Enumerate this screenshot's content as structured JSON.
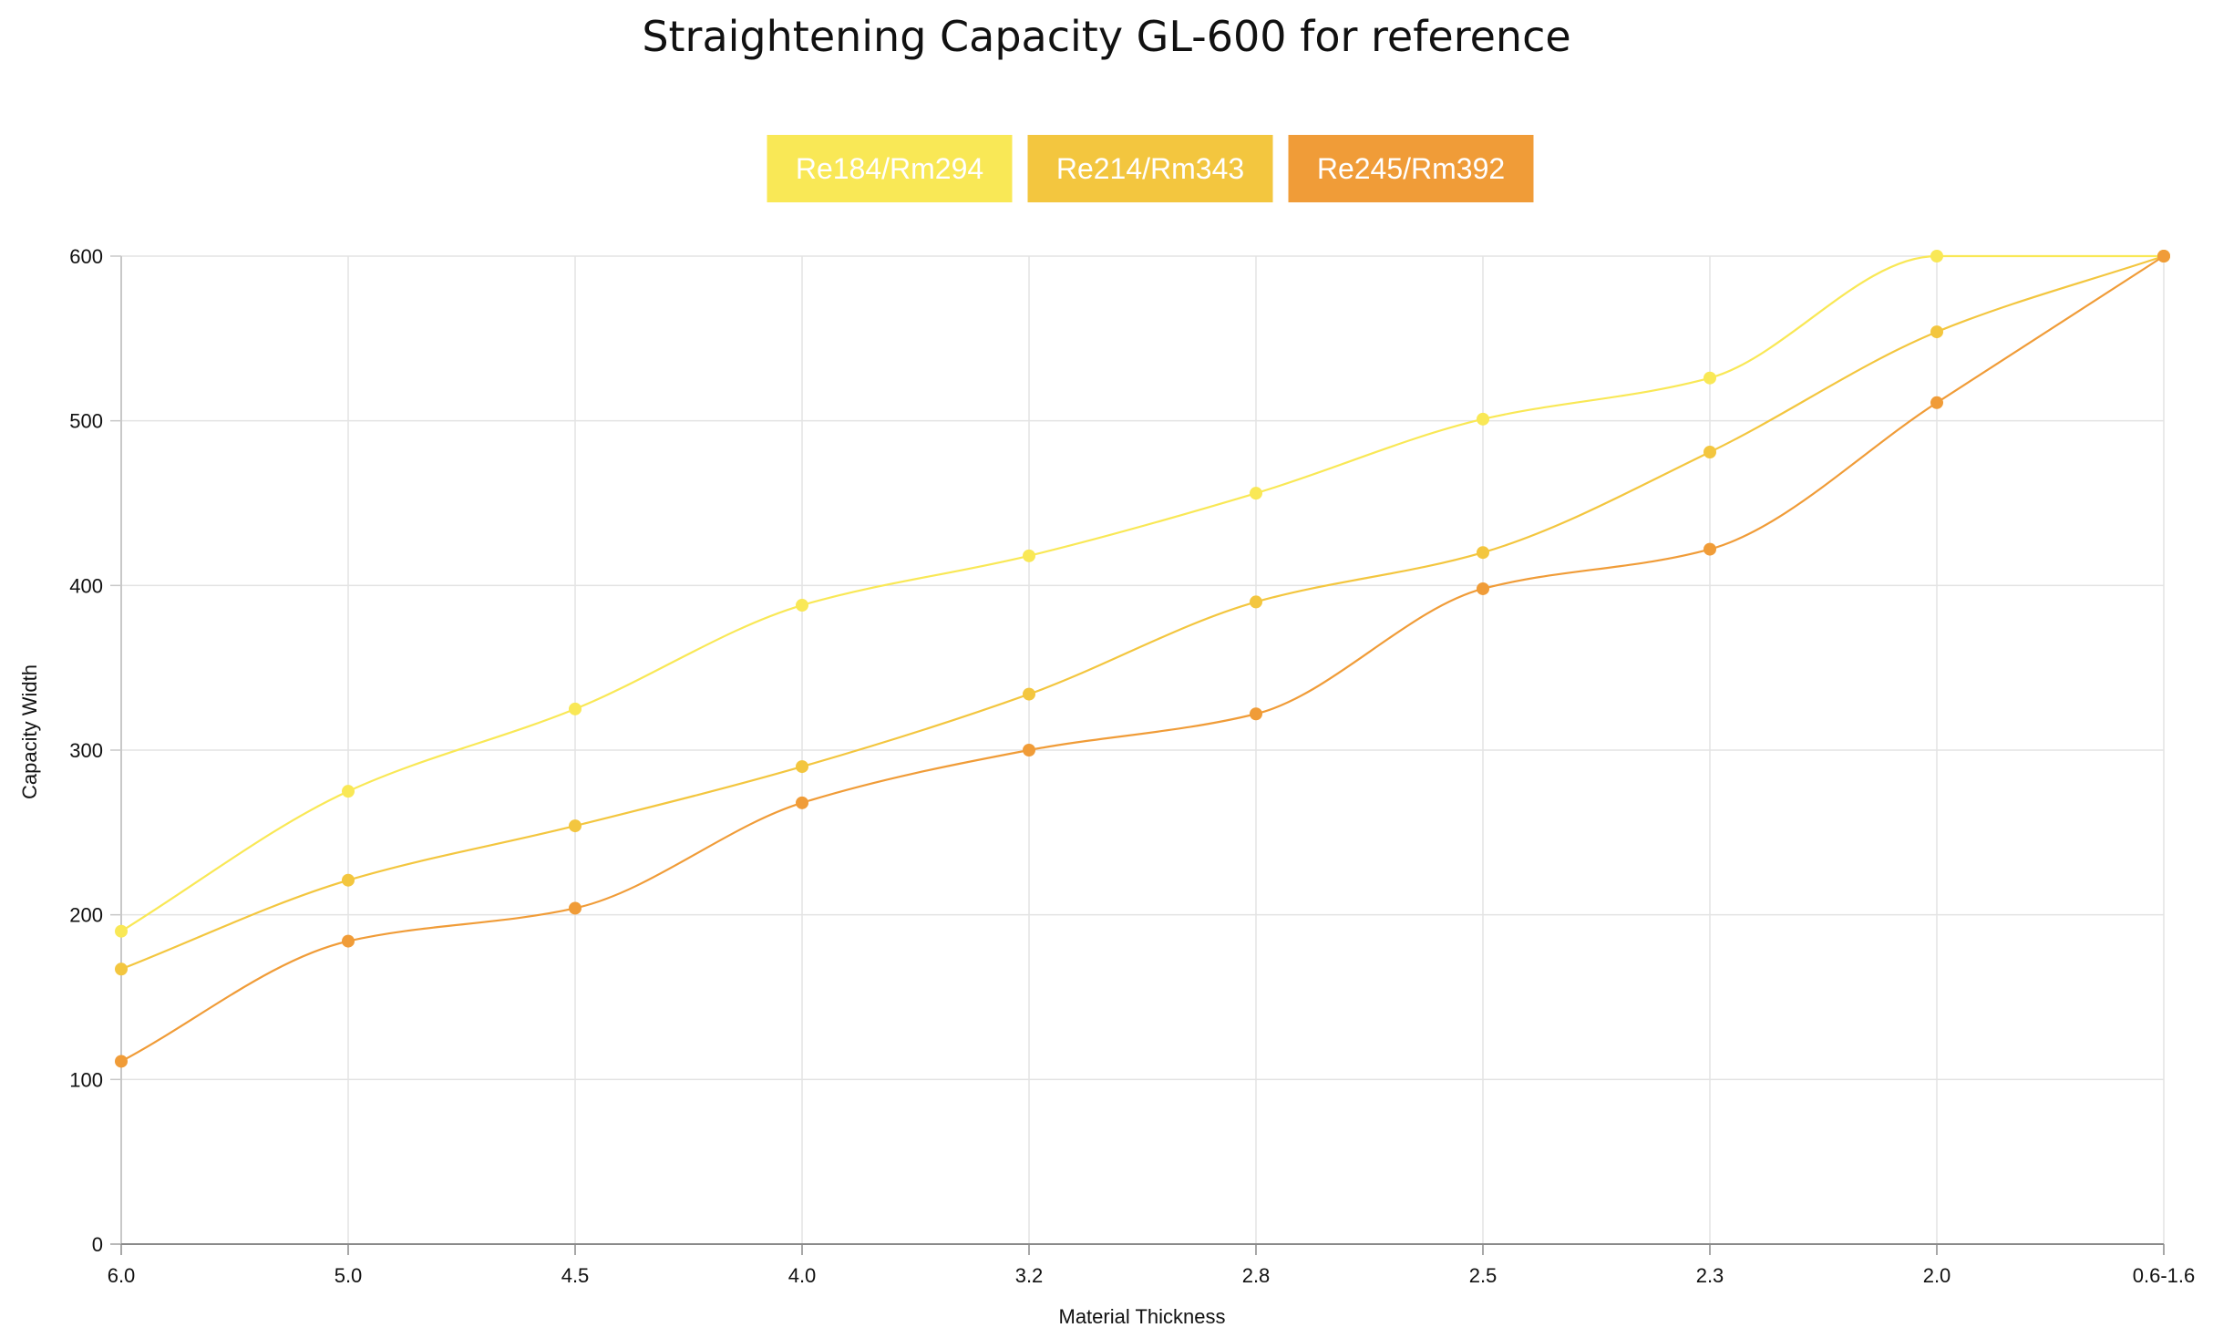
{
  "chart_data": {
    "type": "line",
    "title": "Straightening Capacity GL-600 for reference",
    "xlabel": "Material Thickness",
    "ylabel": "Capacity Width",
    "categories": [
      "6.0",
      "5.0",
      "4.5",
      "4.0",
      "3.2",
      "2.8",
      "2.5",
      "2.3",
      "2.0",
      "0.6-1.6"
    ],
    "ylim": [
      0,
      600
    ],
    "yticks": [
      "0",
      "100",
      "200",
      "300",
      "400",
      "500",
      "600"
    ],
    "grid": true,
    "legend_position": "top-center",
    "series": [
      {
        "name": "Re184/Rm294",
        "color": "#f9e856",
        "values": [
          190,
          275,
          325,
          388,
          418,
          456,
          501,
          526,
          600,
          600
        ]
      },
      {
        "name": "Re214/Rm343",
        "color": "#f3c63f",
        "values": [
          167,
          221,
          254,
          290,
          334,
          390,
          420,
          481,
          554,
          600
        ]
      },
      {
        "name": "Re245/Rm392",
        "color": "#f09c38",
        "values": [
          111,
          184,
          204,
          268,
          300,
          322,
          398,
          422,
          511,
          600
        ]
      }
    ]
  }
}
